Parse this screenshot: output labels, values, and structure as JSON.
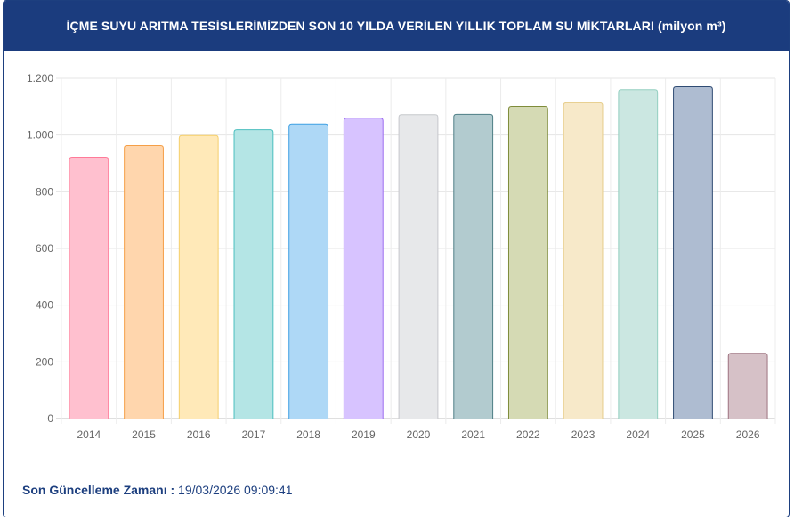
{
  "header": {
    "title": "İÇME SUYU ARITMA TESİSLERİMİZDEN SON 10 YILDA VERİLEN YILLIK TOPLAM SU MİKTARLARI (milyon m³)"
  },
  "footer": {
    "label": "Son Güncelleme Zamanı :",
    "value": " 19/03/2026 09:09:41"
  },
  "chart_data": {
    "type": "bar",
    "categories": [
      "2014",
      "2015",
      "2016",
      "2017",
      "2018",
      "2019",
      "2020",
      "2021",
      "2022",
      "2023",
      "2024",
      "2025",
      "2026"
    ],
    "values": [
      922,
      963,
      998,
      1019,
      1039,
      1060,
      1072,
      1073,
      1101,
      1114,
      1160,
      1170,
      230
    ],
    "colors": [
      {
        "fill": "#ffc0cf",
        "stroke": "#ff7a98"
      },
      {
        "fill": "#ffd6ad",
        "stroke": "#f59f47"
      },
      {
        "fill": "#ffe9b8",
        "stroke": "#f5cf6b"
      },
      {
        "fill": "#b4e5e5",
        "stroke": "#4bbfbf"
      },
      {
        "fill": "#aed8f6",
        "stroke": "#3d9fe3"
      },
      {
        "fill": "#d7c3ff",
        "stroke": "#9b6cf0"
      },
      {
        "fill": "#e7e8ea",
        "stroke": "#c6c8cc"
      },
      {
        "fill": "#b2cbcf",
        "stroke": "#4f7f86"
      },
      {
        "fill": "#d5dab4",
        "stroke": "#7f8c3a"
      },
      {
        "fill": "#f7e9c9",
        "stroke": "#e6cd8a"
      },
      {
        "fill": "#cbe7e1",
        "stroke": "#93cfc0"
      },
      {
        "fill": "#aebcd1",
        "stroke": "#2f4b73"
      },
      {
        "fill": "#d6c1c7",
        "stroke": "#9e7480"
      }
    ],
    "ylim": [
      0,
      1200
    ],
    "yticks": [
      0,
      200,
      400,
      600,
      800,
      1000,
      1200
    ],
    "ytick_labels": [
      "0",
      "200",
      "400",
      "600",
      "800",
      "1.000",
      "1.200"
    ],
    "grid": true
  }
}
